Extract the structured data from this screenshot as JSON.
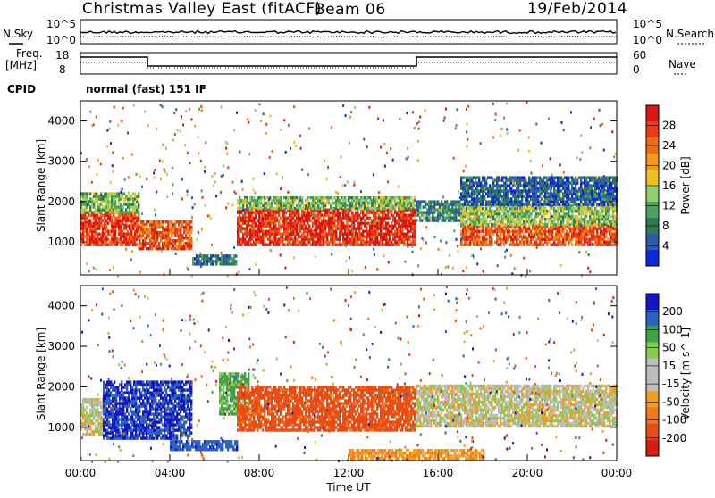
{
  "header": {
    "title": "Christmas Valley East (fitACF)",
    "beam": "Beam 06",
    "date": "19/Feb/2014"
  },
  "noise_panel": {
    "left_label": "N.Sky",
    "right_label": "N.Search",
    "left_ticks": [
      "10^5",
      "10^0"
    ],
    "right_ticks": [
      "10^5",
      "10^0"
    ]
  },
  "freq_panel": {
    "left_label_1": "Freq.",
    "left_label_2": "[MHz]",
    "right_label": "Nave",
    "left_ticks": [
      "18",
      "8"
    ],
    "right_ticks": [
      "60",
      "0"
    ]
  },
  "cpid": {
    "label": "CPID",
    "value": "normal (fast) 151 IF"
  },
  "colors": {
    "power": [
      "#0a2bd9",
      "#2f5aa8",
      "#2e7d52",
      "#4aa45c",
      "#8fd06b",
      "#f0c020",
      "#f39a1c",
      "#f36a14",
      "#ee3a12",
      "#e11414"
    ],
    "velocity_pos": [
      "#1515c8",
      "#2c62c0",
      "#3fa24a",
      "#86cc50"
    ],
    "velocity_neg": [
      "#f0a020",
      "#f37a18",
      "#ec4c14",
      "#dd1a12"
    ],
    "ground_scatter": "#bdbdbd"
  },
  "chart_data": [
    {
      "type": "heatmap",
      "name": "power",
      "ylabel": "Slant Range [km]",
      "xlabel": "",
      "x_ticks": [
        "00:00",
        "04:00",
        "08:00",
        "12:00",
        "16:00",
        "20:00",
        "00:00"
      ],
      "y_ticks": [
        "1000",
        "2000",
        "3000",
        "4000"
      ],
      "ylim": [
        180,
        4500
      ],
      "xlim_hours": [
        0,
        24
      ],
      "colorbar": {
        "label": "Power [dB]",
        "ticks": [
          "28",
          "24",
          "20",
          "16",
          "12",
          "8",
          "4"
        ],
        "range": [
          0,
          30
        ]
      },
      "bands": [
        {
          "t0": 0.0,
          "t1": 2.6,
          "r0": 900,
          "r1": 1700,
          "level": 26
        },
        {
          "t0": 0.0,
          "t1": 2.6,
          "r0": 1700,
          "r1": 2200,
          "level": 12
        },
        {
          "t0": 2.6,
          "t1": 5.0,
          "r0": 800,
          "r1": 1500,
          "level": 24
        },
        {
          "t0": 5.0,
          "t1": 7.0,
          "r0": 420,
          "r1": 620,
          "level": 7
        },
        {
          "t0": 7.0,
          "t1": 15.0,
          "r0": 900,
          "r1": 1800,
          "level": 27
        },
        {
          "t0": 7.0,
          "t1": 15.0,
          "r0": 1800,
          "r1": 2100,
          "level": 12
        },
        {
          "t0": 15.0,
          "t1": 17.0,
          "r0": 1500,
          "r1": 2000,
          "level": 8
        },
        {
          "t0": 17.0,
          "t1": 24.0,
          "r0": 900,
          "r1": 1400,
          "level": 24
        },
        {
          "t0": 17.0,
          "t1": 24.0,
          "r0": 1400,
          "r1": 1900,
          "level": 13
        },
        {
          "t0": 17.0,
          "t1": 24.0,
          "r0": 1900,
          "r1": 2600,
          "level": 5
        }
      ]
    },
    {
      "type": "heatmap",
      "name": "velocity",
      "ylabel": "Slant Range [km]",
      "xlabel": "Time UT",
      "x_ticks": [
        "00:00",
        "04:00",
        "08:00",
        "12:00",
        "16:00",
        "20:00",
        "00:00"
      ],
      "y_ticks": [
        "1000",
        "2000",
        "3000",
        "4000"
      ],
      "ylim": [
        180,
        4500
      ],
      "xlim_hours": [
        0,
        24
      ],
      "colorbar": {
        "label": "Velocity [m s^-1]",
        "ticks": [
          "200",
          "100",
          "50",
          "15",
          "-15",
          "-50",
          "-100",
          "-200"
        ],
        "range": [
          -250,
          250
        ]
      },
      "bands": [
        {
          "t0": 0.0,
          "t1": 1.0,
          "r0": 800,
          "r1": 1700,
          "value": 0
        },
        {
          "t0": 1.0,
          "t1": 5.0,
          "r0": 700,
          "r1": 2100,
          "value": 200
        },
        {
          "t0": 4.0,
          "t1": 7.0,
          "r0": 420,
          "r1": 620,
          "value": 180
        },
        {
          "t0": 6.2,
          "t1": 7.5,
          "r0": 1300,
          "r1": 2300,
          "value": 60
        },
        {
          "t0": 7.0,
          "t1": 15.0,
          "r0": 900,
          "r1": 2000,
          "value": -120
        },
        {
          "t0": 15.0,
          "t1": 24.0,
          "r0": 1000,
          "r1": 2000,
          "value": 0
        },
        {
          "t0": 12.0,
          "t1": 18.0,
          "r0": 200,
          "r1": 420,
          "value": -40
        }
      ]
    }
  ]
}
